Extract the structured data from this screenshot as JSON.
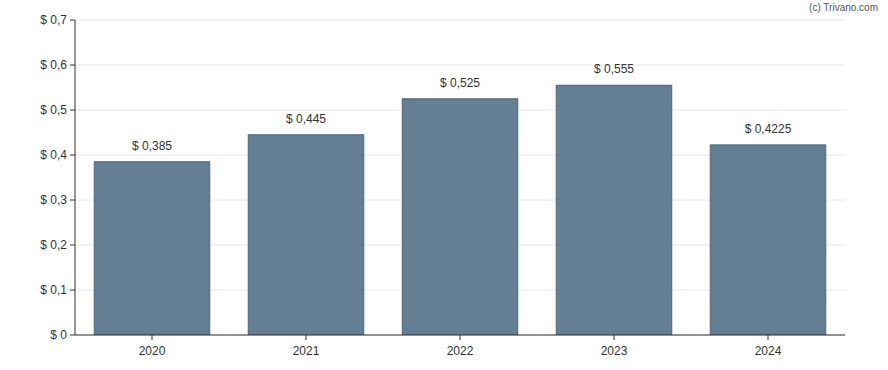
{
  "chart_data": {
    "type": "bar",
    "annotation": "(c) Trivano.com",
    "categories": [
      "2020",
      "2021",
      "2022",
      "2023",
      "2024"
    ],
    "values": [
      0.385,
      0.445,
      0.525,
      0.555,
      0.4225
    ],
    "value_labels": [
      "$ 0,385",
      "$ 0,445",
      "$ 0,525",
      "$ 0,555",
      "$ 0,4225"
    ],
    "data_labels": true,
    "color": "#647f93",
    "ylim": [
      0,
      0.7
    ],
    "yticks": [
      {
        "value": 0,
        "label": "$ 0"
      },
      {
        "value": 0.1,
        "label": "$ 0,1"
      },
      {
        "value": 0.2,
        "label": "$ 0,2"
      },
      {
        "value": 0.3,
        "label": "$ 0,3"
      },
      {
        "value": 0.4,
        "label": "$ 0,4"
      },
      {
        "value": 0.5,
        "label": "$ 0,5"
      },
      {
        "value": 0.6,
        "label": "$ 0,6"
      },
      {
        "value": 0.7,
        "label": "$ 0,7"
      }
    ],
    "grid": true
  }
}
